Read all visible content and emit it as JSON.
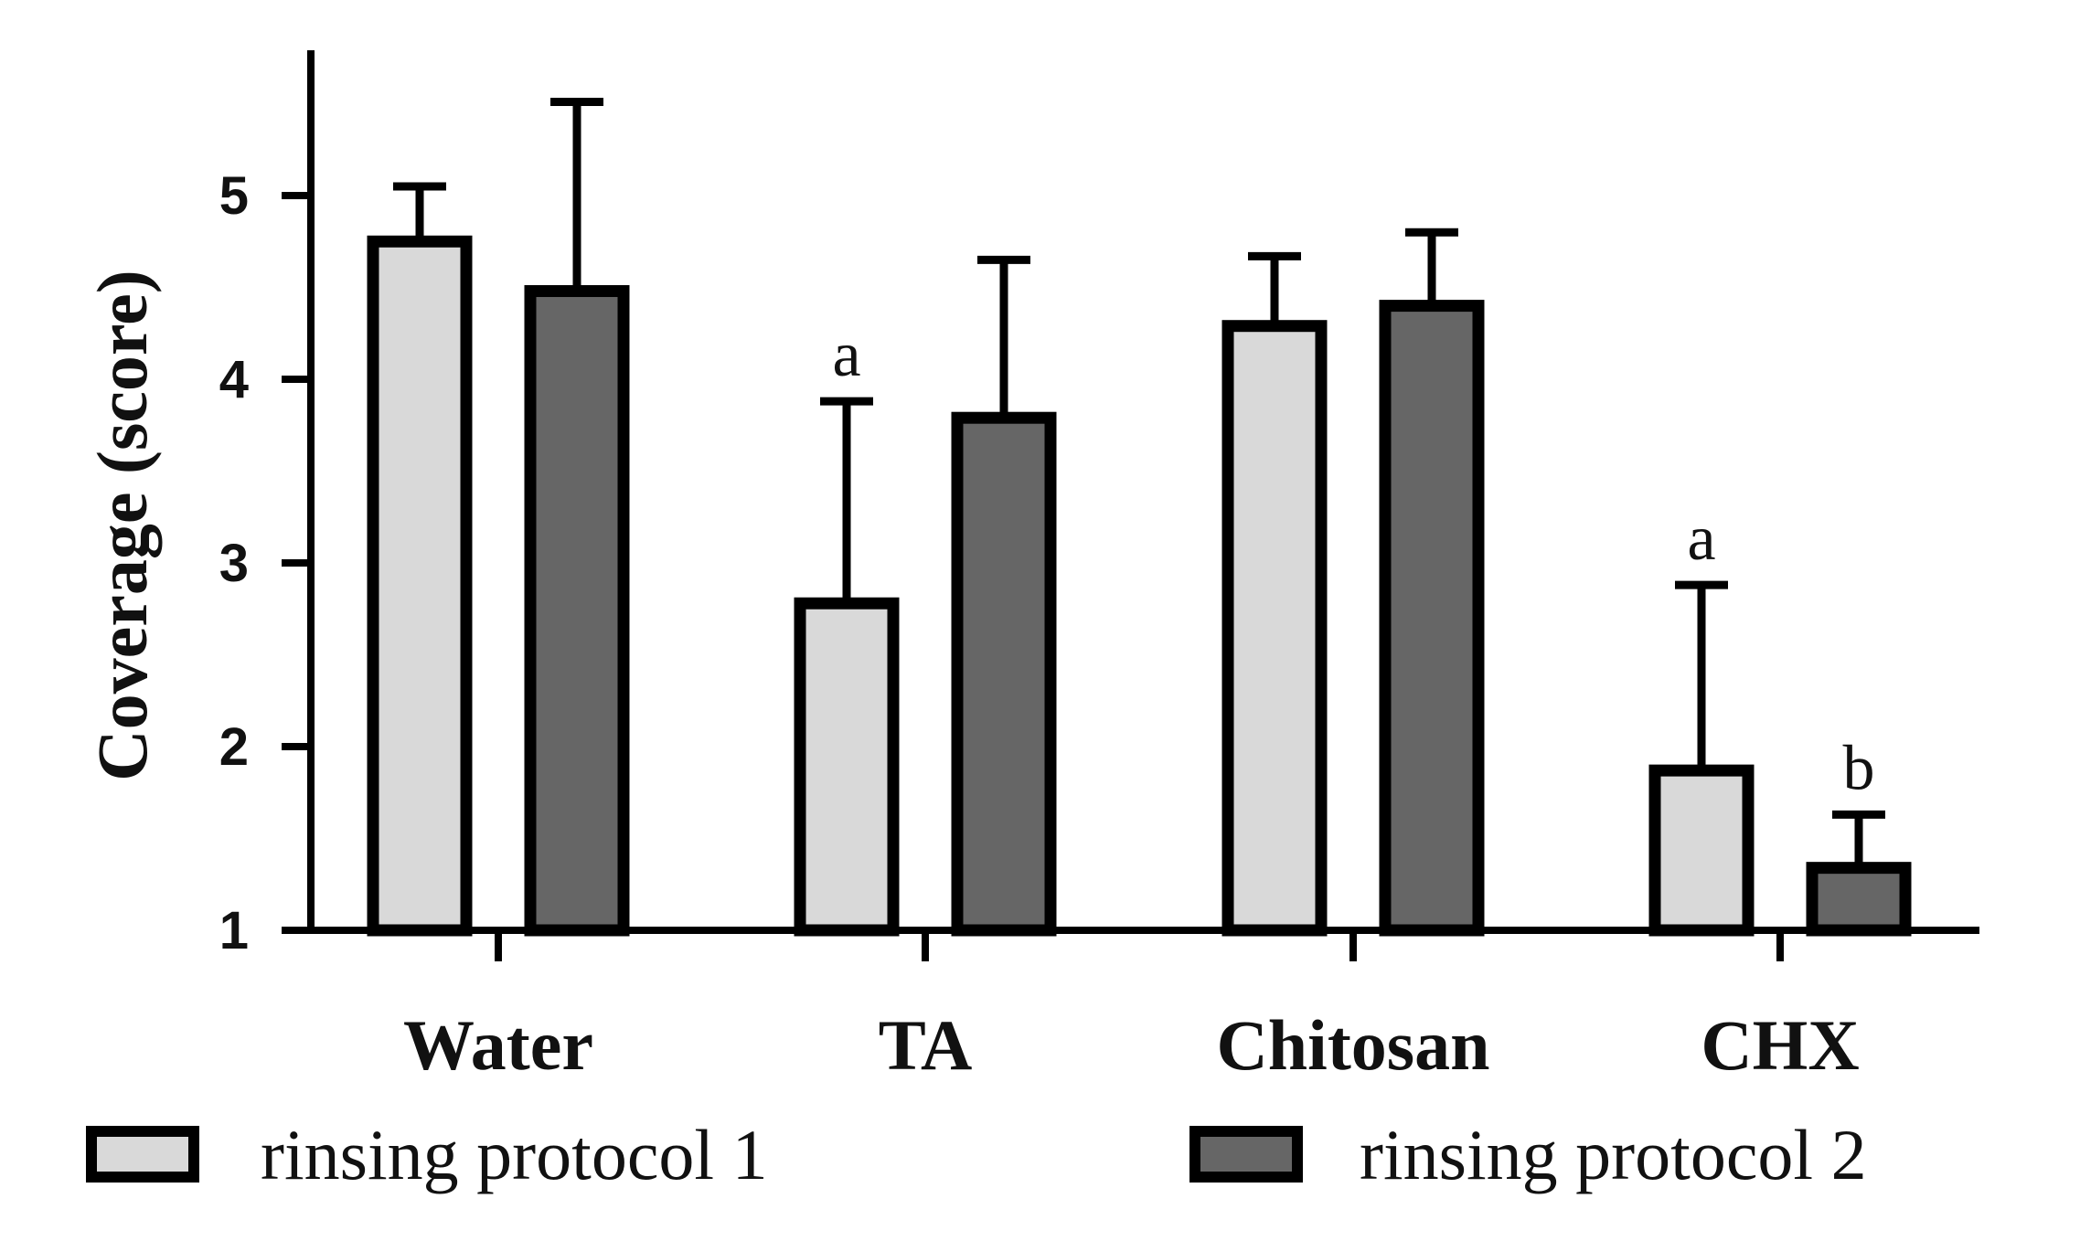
{
  "chart_data": {
    "type": "bar",
    "title": "",
    "ylabel": "Coverage (score)",
    "xlabel": "",
    "ylim": [
      1,
      5.8
    ],
    "yticks": [
      1,
      2,
      3,
      4,
      5
    ],
    "categories": [
      "Water",
      "TA",
      "Chitosan",
      "CHX"
    ],
    "series": [
      {
        "name": "rinsing protocol 1",
        "values": [
          4.75,
          2.78,
          4.29,
          1.87
        ],
        "errors": [
          0.3,
          1.1,
          0.38,
          1.01
        ],
        "annotations": [
          "",
          "a",
          "",
          "a"
        ],
        "color": "#d9d9d9"
      },
      {
        "name": "rinsing protocol 2",
        "values": [
          4.48,
          3.79,
          4.4,
          1.34
        ],
        "errors": [
          1.03,
          0.86,
          0.4,
          0.29
        ],
        "annotations": [
          "",
          "",
          "",
          "b"
        ],
        "color": "#666666"
      }
    ],
    "grid": false,
    "legend_position": "bottom"
  }
}
